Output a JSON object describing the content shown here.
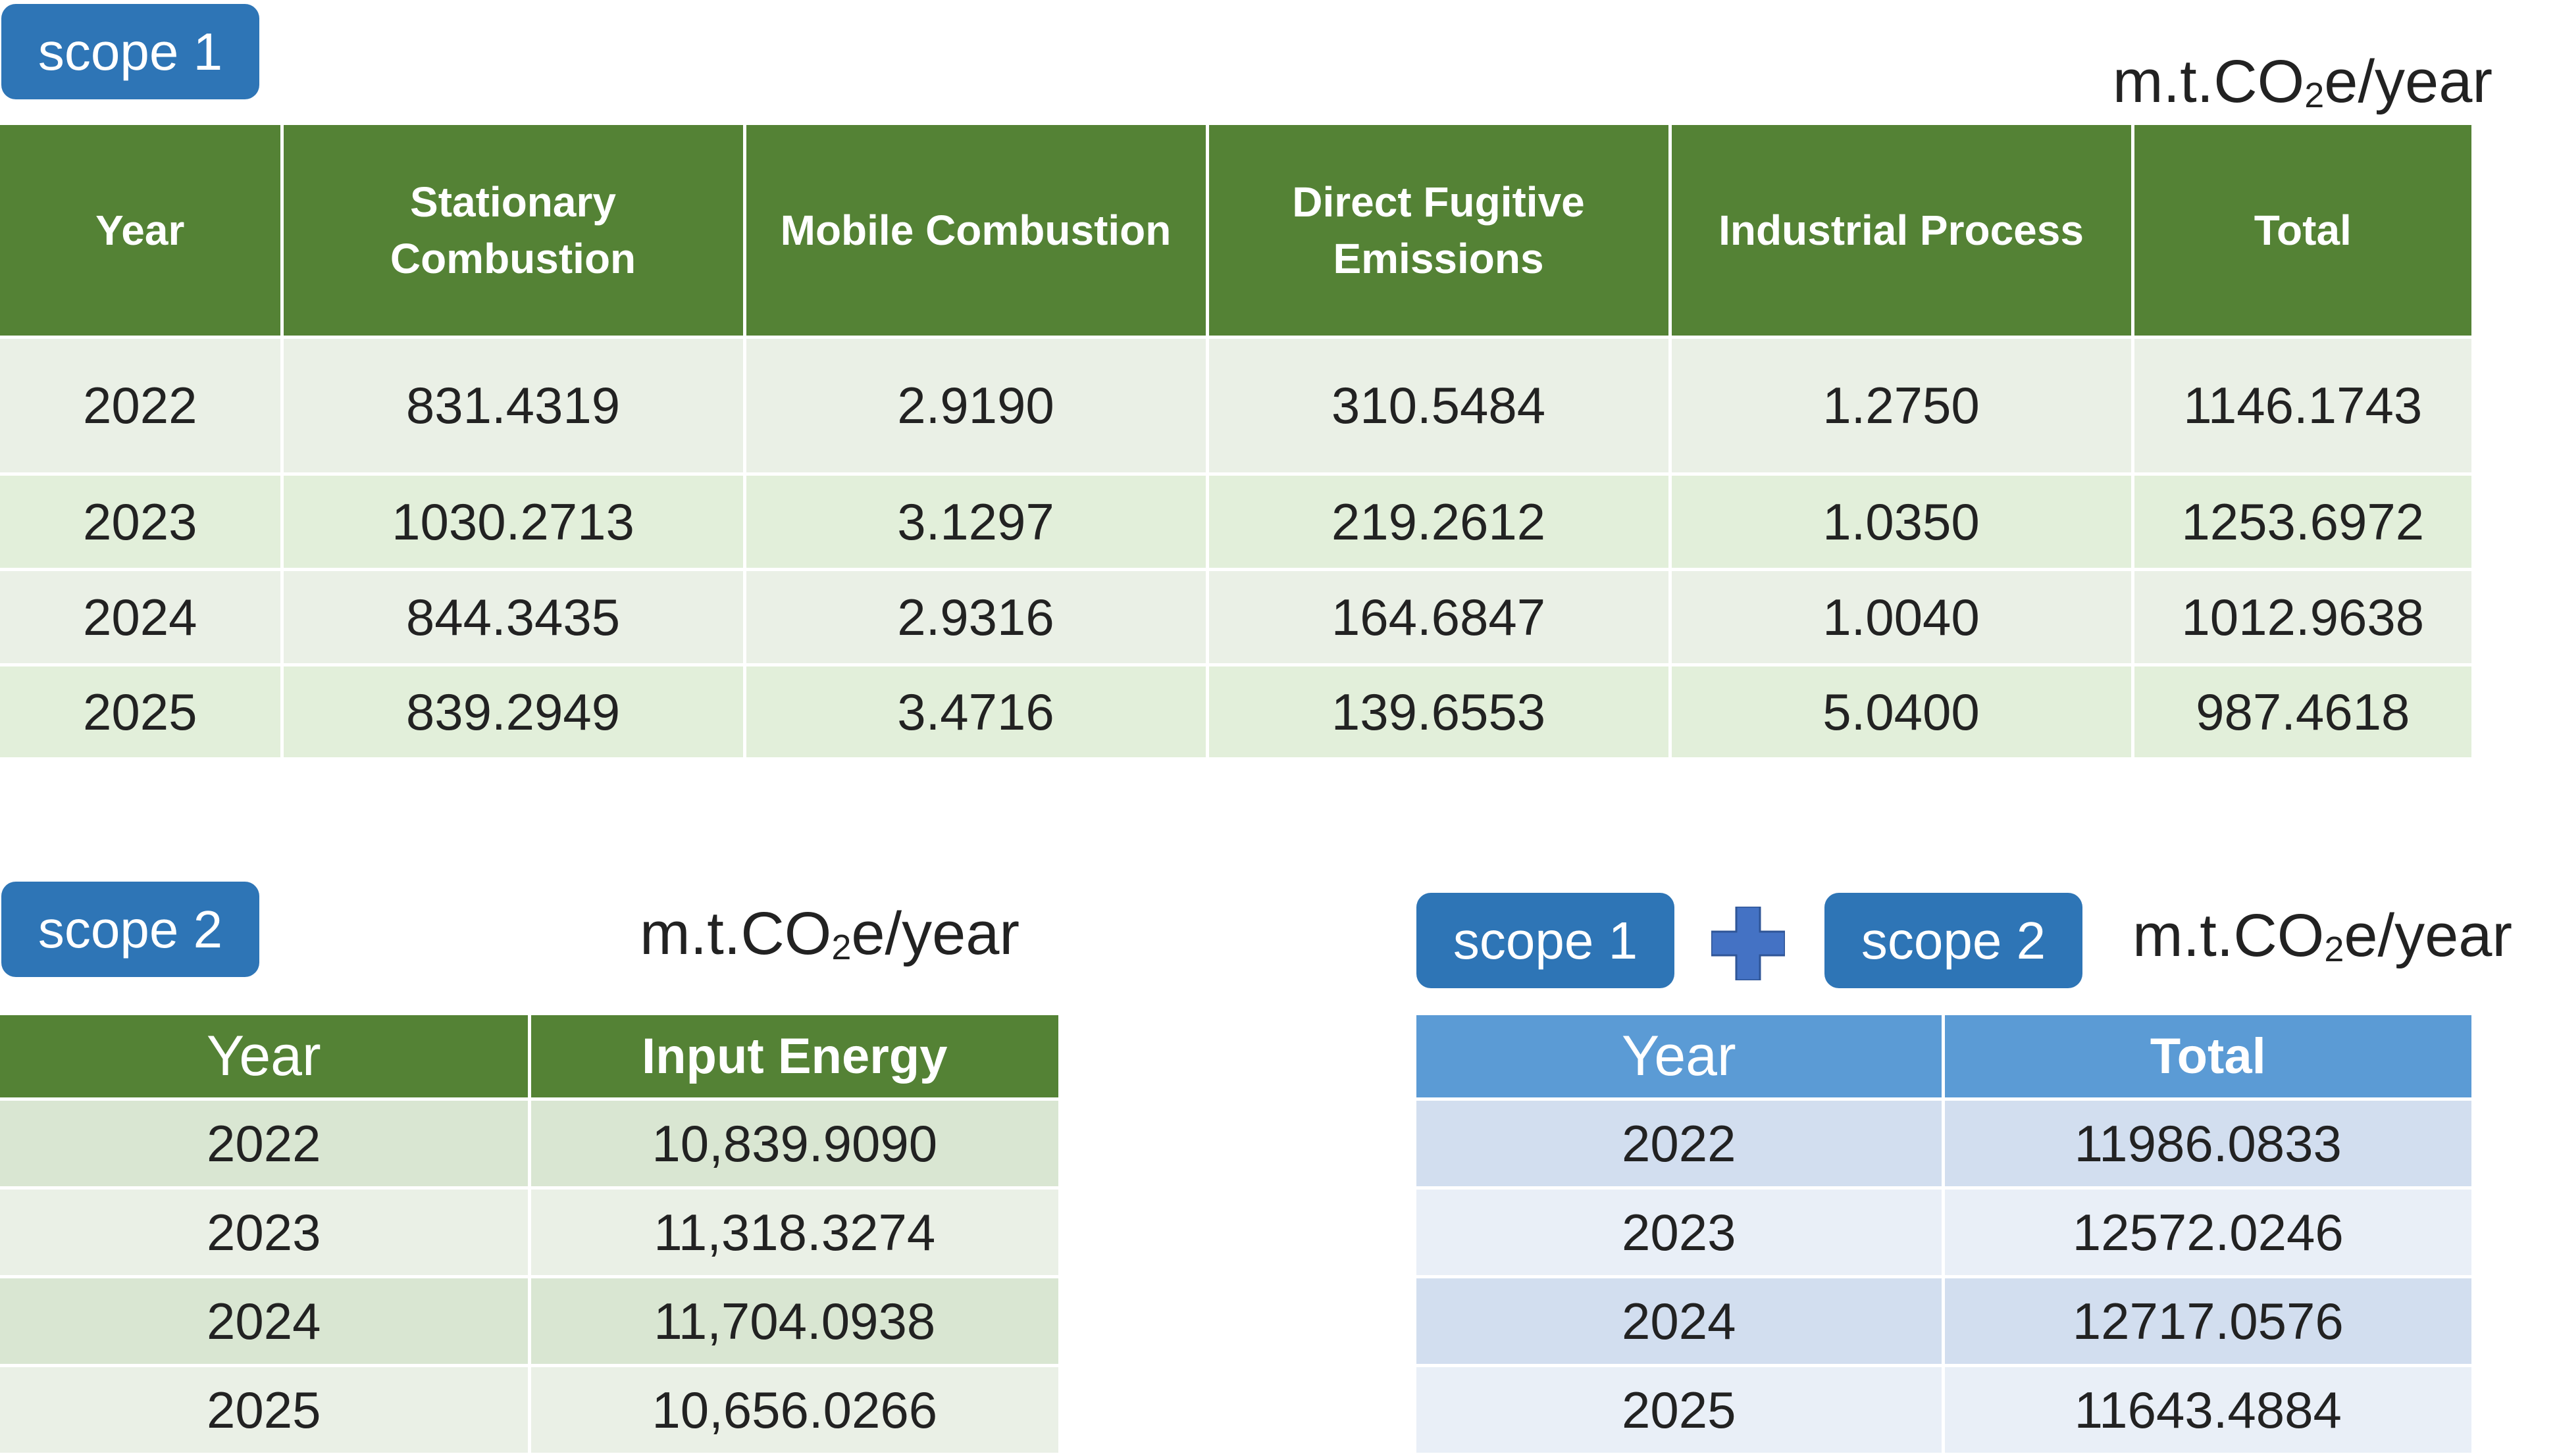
{
  "scope1": {
    "badge": "scope 1",
    "unit": {
      "prefix": "m.t.CO",
      "sub": "2",
      "suffix": "e/year"
    },
    "headers": [
      "Year",
      "Stationary Combustion",
      "Mobile Combustion",
      "Direct Fugitive Emissions",
      "Industrial Process",
      "Total"
    ],
    "rows": [
      [
        "2022",
        "831.4319",
        "2.9190",
        "310.5484",
        "1.2750",
        "1146.1743"
      ],
      [
        "2023",
        "1030.2713",
        "3.1297",
        "219.2612",
        "1.0350",
        "1253.6972"
      ],
      [
        "2024",
        "844.3435",
        "2.9316",
        "164.6847",
        "1.0040",
        "1012.9638"
      ],
      [
        "2025",
        "839.2949",
        "3.4716",
        "139.6553",
        "5.0400",
        "987.4618"
      ]
    ]
  },
  "scope2": {
    "badge": "scope 2",
    "unit": {
      "prefix": "m.t.CO",
      "sub": "2",
      "suffix": "e/year"
    },
    "headers": [
      "Year",
      "Input Energy"
    ],
    "rows": [
      [
        "2022",
        "10,839.9090"
      ],
      [
        "2023",
        "11,318.3274"
      ],
      [
        "2024",
        "11,704.0938"
      ],
      [
        "2025",
        "10,656.0266"
      ]
    ]
  },
  "combined": {
    "badge_a": "scope 1",
    "badge_b": "scope 2",
    "plus_icon": "plus-icon",
    "unit": {
      "prefix": "m.t.CO",
      "sub": "2",
      "suffix": "e/year"
    },
    "headers": [
      "Year",
      "Total"
    ],
    "rows": [
      [
        "2022",
        "11986.0833"
      ],
      [
        "2023",
        "12572.0246"
      ],
      [
        "2024",
        "12717.0576"
      ],
      [
        "2025",
        "11643.4884"
      ]
    ]
  },
  "colors": {
    "badge": "#2e75b6",
    "green_header": "#548235",
    "blue_header": "#5b9bd5",
    "plus": "#4472c4"
  }
}
